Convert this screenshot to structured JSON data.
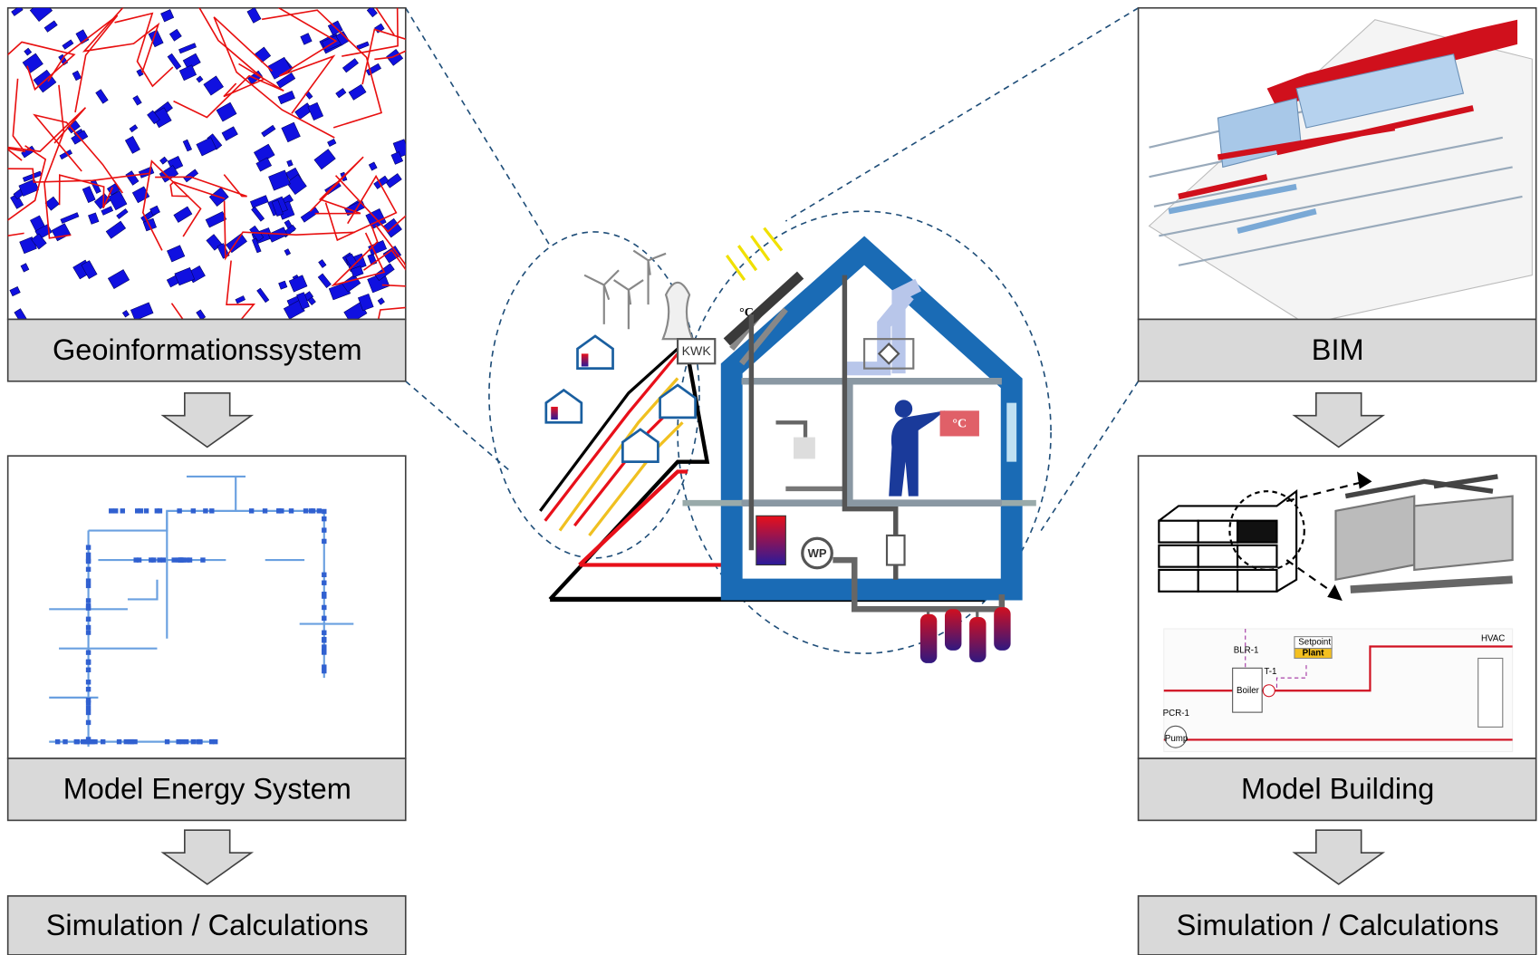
{
  "left": {
    "panels": [
      {
        "label": "Geoinformationssystem"
      },
      {
        "label": "Model Energy System"
      },
      {
        "label": "Simulation / Calculations"
      }
    ]
  },
  "right": {
    "panels": [
      {
        "label": "BIM"
      },
      {
        "label": "Model Building"
      },
      {
        "label": "Simulation / Calculations"
      }
    ]
  },
  "center": {
    "kwk": "KWK",
    "wp": "WP",
    "temp_roof": "°C",
    "temp_room": "°C"
  },
  "schematic": {
    "boiler_id": "BLR-1",
    "boiler": "Boiler",
    "thermostat": "T-1",
    "setpoint": "Setpoint",
    "plant": "Plant",
    "pump_id": "PCR-1",
    "pump": "Pump",
    "hvac": "HVAC"
  }
}
